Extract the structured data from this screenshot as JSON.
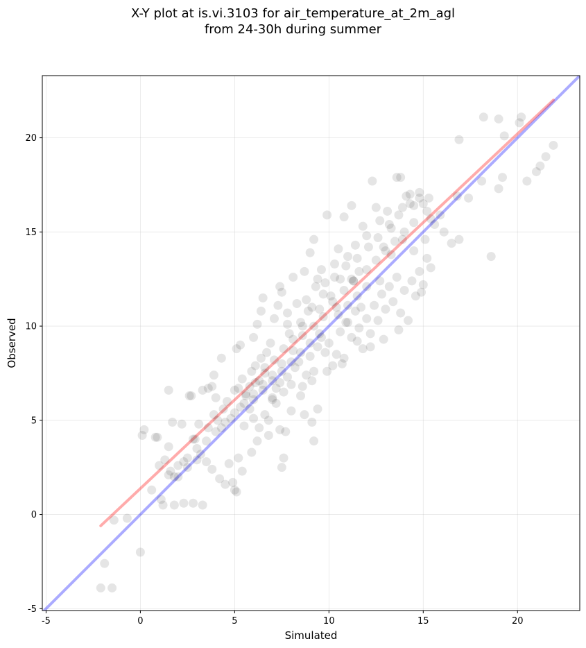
{
  "chart_data": {
    "type": "scatter",
    "title_line1": "X-Y plot at is.vi.3103 for air_temperature_at_2m_agl",
    "title_line2": "from 24-30h during summer",
    "xlabel": "Simulated",
    "ylabel": "Observed",
    "xlim": [
      -5.2,
      23.3
    ],
    "ylim": [
      -5.1,
      23.3
    ],
    "xticks": [
      -5,
      0,
      5,
      10,
      15,
      20
    ],
    "yticks": [
      -5,
      0,
      5,
      10,
      15,
      20
    ],
    "grid": true,
    "point_color": "#000000",
    "point_alpha": 0.1,
    "fit_line": {
      "color": "#ff0000",
      "x": [
        -2.1,
        21.9
      ],
      "y": [
        -0.6,
        22.0
      ]
    },
    "identity_line": {
      "color": "#0000ff",
      "x": [
        -5.2,
        23.3
      ],
      "y": [
        -5.2,
        23.3
      ]
    },
    "points": [
      [
        -2.1,
        -3.9
      ],
      [
        -1.5,
        -3.9
      ],
      [
        -1.9,
        -2.6
      ],
      [
        0.0,
        -2.0
      ],
      [
        -1.4,
        -0.3
      ],
      [
        -0.7,
        -0.2
      ],
      [
        0.1,
        4.2
      ],
      [
        0.2,
        4.5
      ],
      [
        0.8,
        4.1
      ],
      [
        0.9,
        4.1
      ],
      [
        0.6,
        1.3
      ],
      [
        1.1,
        0.8
      ],
      [
        1.2,
        0.5
      ],
      [
        1.0,
        2.6
      ],
      [
        1.3,
        2.9
      ],
      [
        1.5,
        3.6
      ],
      [
        1.6,
        2.3
      ],
      [
        1.8,
        2.0
      ],
      [
        2.0,
        2.0
      ],
      [
        2.3,
        0.6
      ],
      [
        1.8,
        0.5
      ],
      [
        2.8,
        0.6
      ],
      [
        3.3,
        0.5
      ],
      [
        1.5,
        6.6
      ],
      [
        1.7,
        4.9
      ],
      [
        2.2,
        4.8
      ],
      [
        2.6,
        6.3
      ],
      [
        2.7,
        6.3
      ],
      [
        2.8,
        4.0
      ],
      [
        2.9,
        4.0
      ],
      [
        3.1,
        4.8
      ],
      [
        3.3,
        6.6
      ],
      [
        3.6,
        6.7
      ],
      [
        3.8,
        6.8
      ],
      [
        2.3,
        2.8
      ],
      [
        2.5,
        2.5
      ],
      [
        3.0,
        2.9
      ],
      [
        3.2,
        3.2
      ],
      [
        3.5,
        2.8
      ],
      [
        3.8,
        2.4
      ],
      [
        4.2,
        1.9
      ],
      [
        4.5,
        1.6
      ],
      [
        4.9,
        1.7
      ],
      [
        5.1,
        1.2
      ],
      [
        5.0,
        1.3
      ],
      [
        4.7,
        2.7
      ],
      [
        5.4,
        2.3
      ],
      [
        5.2,
        3.0
      ],
      [
        5.9,
        3.3
      ],
      [
        6.2,
        3.9
      ],
      [
        6.8,
        4.2
      ],
      [
        7.5,
        2.5
      ],
      [
        7.6,
        3.0
      ],
      [
        7.4,
        4.5
      ],
      [
        7.7,
        4.4
      ],
      [
        3.6,
        4.6
      ],
      [
        3.9,
        5.3
      ],
      [
        4.1,
        5.0
      ],
      [
        4.3,
        4.6
      ],
      [
        4.4,
        5.6
      ],
      [
        4.6,
        6.0
      ],
      [
        4.8,
        5.1
      ],
      [
        4.3,
        8.3
      ],
      [
        4.0,
        6.2
      ],
      [
        3.9,
        7.4
      ],
      [
        5.1,
        8.8
      ],
      [
        5.3,
        9.0
      ],
      [
        5.0,
        6.6
      ],
      [
        5.2,
        6.7
      ],
      [
        5.4,
        7.2
      ],
      [
        5.6,
        6.4
      ],
      [
        5.8,
        6.8
      ],
      [
        5.9,
        7.6
      ],
      [
        6.1,
        7.9
      ],
      [
        6.3,
        7.1
      ],
      [
        6.4,
        8.3
      ],
      [
        6.6,
        7.5
      ],
      [
        6.7,
        8.6
      ],
      [
        6.0,
        9.4
      ],
      [
        6.2,
        10.1
      ],
      [
        6.4,
        10.8
      ],
      [
        6.5,
        11.5
      ],
      [
        6.9,
        9.1
      ],
      [
        7.1,
        10.4
      ],
      [
        7.3,
        11.1
      ],
      [
        7.4,
        12.1
      ],
      [
        7.5,
        11.8
      ],
      [
        7.8,
        10.7
      ],
      [
        7.9,
        9.6
      ],
      [
        8.1,
        12.6
      ],
      [
        8.3,
        11.2
      ],
      [
        8.5,
        10.2
      ],
      [
        8.7,
        12.9
      ],
      [
        8.8,
        11.4
      ],
      [
        9.0,
        13.9
      ],
      [
        9.2,
        14.6
      ],
      [
        9.3,
        12.1
      ],
      [
        9.5,
        10.9
      ],
      [
        9.6,
        13.0
      ],
      [
        9.8,
        12.3
      ],
      [
        9.9,
        15.9
      ],
      [
        10.1,
        11.6
      ],
      [
        10.3,
        13.3
      ],
      [
        10.5,
        14.1
      ],
      [
        10.6,
        12.5
      ],
      [
        10.8,
        15.8
      ],
      [
        11.0,
        13.7
      ],
      [
        11.2,
        16.4
      ],
      [
        11.4,
        14.3
      ],
      [
        11.6,
        12.9
      ],
      [
        11.8,
        15.3
      ],
      [
        12.0,
        14.8
      ],
      [
        12.3,
        17.7
      ],
      [
        12.5,
        16.3
      ],
      [
        12.7,
        15.6
      ],
      [
        12.9,
        14.2
      ],
      [
        13.1,
        16.1
      ],
      [
        13.3,
        15.2
      ],
      [
        13.6,
        17.9
      ],
      [
        13.8,
        17.9
      ],
      [
        13.9,
        16.3
      ],
      [
        14.1,
        16.9
      ],
      [
        14.3,
        17.0
      ],
      [
        14.5,
        16.4
      ],
      [
        14.8,
        16.8
      ],
      [
        15.0,
        16.5
      ],
      [
        15.2,
        16.1
      ],
      [
        15.4,
        15.7
      ],
      [
        15.6,
        15.4
      ],
      [
        15.9,
        15.9
      ],
      [
        16.1,
        15.0
      ],
      [
        16.5,
        14.4
      ],
      [
        16.9,
        14.6
      ],
      [
        16.8,
        16.9
      ],
      [
        17.4,
        16.8
      ],
      [
        18.1,
        17.7
      ],
      [
        16.9,
        19.9
      ],
      [
        18.2,
        21.1
      ],
      [
        19.0,
        21.0
      ],
      [
        19.3,
        20.1
      ],
      [
        20.1,
        20.8
      ],
      [
        20.2,
        21.1
      ],
      [
        18.6,
        13.7
      ],
      [
        19.0,
        17.3
      ],
      [
        19.2,
        17.9
      ],
      [
        20.5,
        17.7
      ],
      [
        21.0,
        18.2
      ],
      [
        21.2,
        18.5
      ],
      [
        21.5,
        19.0
      ],
      [
        21.9,
        19.6
      ],
      [
        7.0,
        6.2
      ],
      [
        7.2,
        6.7
      ],
      [
        7.4,
        7.0
      ],
      [
        7.6,
        6.5
      ],
      [
        7.8,
        7.3
      ],
      [
        8.0,
        6.9
      ],
      [
        8.2,
        7.8
      ],
      [
        8.4,
        8.1
      ],
      [
        8.6,
        6.8
      ],
      [
        8.8,
        7.4
      ],
      [
        9.0,
        8.4
      ],
      [
        9.2,
        7.6
      ],
      [
        9.4,
        8.9
      ],
      [
        9.6,
        9.4
      ],
      [
        9.8,
        8.6
      ],
      [
        10.0,
        9.1
      ],
      [
        10.2,
        7.9
      ],
      [
        10.4,
        8.5
      ],
      [
        10.6,
        9.7
      ],
      [
        10.8,
        8.3
      ],
      [
        11.0,
        10.2
      ],
      [
        11.2,
        9.4
      ],
      [
        11.4,
        10.8
      ],
      [
        11.6,
        9.9
      ],
      [
        11.8,
        8.8
      ],
      [
        12.0,
        10.4
      ],
      [
        12.2,
        9.6
      ],
      [
        12.4,
        11.1
      ],
      [
        12.6,
        10.3
      ],
      [
        12.8,
        11.7
      ],
      [
        13.0,
        10.9
      ],
      [
        13.2,
        12.1
      ],
      [
        13.4,
        11.3
      ],
      [
        13.6,
        12.6
      ],
      [
        13.8,
        10.7
      ],
      [
        14.0,
        11.9
      ],
      [
        14.2,
        10.3
      ],
      [
        14.4,
        12.4
      ],
      [
        14.6,
        11.6
      ],
      [
        14.8,
        12.9
      ],
      [
        15.0,
        12.2
      ],
      [
        15.2,
        13.6
      ],
      [
        15.4,
        13.1
      ],
      [
        14.9,
        11.8
      ],
      [
        13.7,
        9.8
      ],
      [
        12.9,
        9.3
      ],
      [
        12.2,
        8.9
      ],
      [
        11.5,
        9.2
      ],
      [
        10.7,
        8.0
      ],
      [
        9.9,
        7.6
      ],
      [
        9.1,
        7.1
      ],
      [
        8.5,
        6.3
      ],
      [
        8.0,
        5.5
      ],
      [
        8.7,
        5.3
      ],
      [
        9.4,
        5.6
      ],
      [
        9.1,
        4.9
      ],
      [
        9.2,
        3.9
      ],
      [
        7.2,
        5.9
      ],
      [
        6.6,
        5.3
      ],
      [
        6.0,
        5.1
      ],
      [
        5.5,
        4.7
      ],
      [
        5.8,
        5.6
      ],
      [
        6.3,
        4.6
      ],
      [
        6.8,
        5.0
      ],
      [
        7.0,
        6.1
      ],
      [
        5.3,
        5.7
      ],
      [
        10.9,
        13.2
      ],
      [
        10.3,
        12.6
      ],
      [
        9.7,
        11.7
      ],
      [
        9.1,
        11.0
      ],
      [
        8.6,
        10.0
      ],
      [
        8.1,
        9.3
      ],
      [
        7.6,
        8.8
      ],
      [
        7.1,
        8.2
      ],
      [
        6.6,
        7.8
      ],
      [
        6.1,
        7.0
      ],
      [
        5.6,
        6.3
      ],
      [
        11.5,
        13.6
      ],
      [
        12.1,
        14.2
      ],
      [
        12.6,
        14.7
      ],
      [
        13.2,
        15.4
      ],
      [
        13.7,
        15.9
      ],
      [
        14.3,
        16.5
      ],
      [
        14.8,
        17.1
      ],
      [
        15.3,
        16.8
      ],
      [
        11.3,
        12.4
      ],
      [
        10.8,
        11.9
      ],
      [
        10.2,
        11.3
      ],
      [
        9.7,
        10.5
      ],
      [
        9.2,
        10.0
      ],
      [
        8.6,
        9.5
      ],
      [
        8.1,
        8.7
      ],
      [
        7.5,
        8.0
      ],
      [
        7.0,
        7.4
      ],
      [
        6.5,
        6.9
      ],
      [
        6.0,
        6.4
      ],
      [
        5.5,
        5.9
      ],
      [
        5.0,
        5.4
      ],
      [
        4.5,
        4.9
      ],
      [
        4.0,
        4.4
      ],
      [
        3.5,
        3.9
      ],
      [
        3.0,
        3.5
      ],
      [
        2.5,
        3.0
      ],
      [
        2.0,
        2.6
      ],
      [
        1.5,
        2.1
      ],
      [
        12.0,
        13.0
      ],
      [
        12.5,
        13.5
      ],
      [
        13.0,
        14.0
      ],
      [
        13.5,
        14.5
      ],
      [
        14.0,
        15.0
      ],
      [
        14.5,
        15.5
      ],
      [
        10.5,
        10.6
      ],
      [
        11.0,
        11.1
      ],
      [
        11.5,
        11.6
      ],
      [
        12.0,
        12.1
      ],
      [
        9.5,
        9.6
      ],
      [
        9.0,
        9.1
      ],
      [
        8.5,
        8.6
      ],
      [
        8.0,
        8.1
      ],
      [
        7.5,
        7.6
      ],
      [
        7.0,
        7.1
      ],
      [
        6.5,
        6.6
      ],
      [
        6.0,
        6.1
      ],
      [
        11.2,
        12.5
      ],
      [
        11.3,
        12.4
      ],
      [
        7.8,
        10.1
      ],
      [
        8.9,
        10.8
      ],
      [
        9.4,
        12.5
      ],
      [
        10.4,
        11.0
      ],
      [
        10.9,
        10.2
      ],
      [
        11.7,
        11.0
      ],
      [
        12.7,
        12.4
      ],
      [
        13.3,
        13.8
      ],
      [
        13.9,
        14.6
      ],
      [
        14.5,
        14.0
      ],
      [
        15.1,
        14.6
      ]
    ]
  }
}
